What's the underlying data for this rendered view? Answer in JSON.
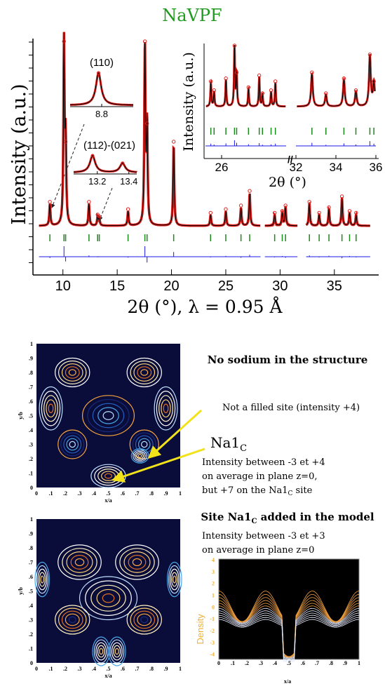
{
  "title": "NaVPF",
  "xrd": {
    "xlabel": "2θ (°), λ = 0.95 Å",
    "ylabel": "Intensity (a.u.)",
    "xlim": [
      7.5,
      38.5
    ],
    "xticks": [
      10,
      15,
      20,
      25,
      30,
      35
    ],
    "peaks": [
      [
        8.8,
        12
      ],
      [
        10.1,
        100
      ],
      [
        10.25,
        45
      ],
      [
        12.4,
        12
      ],
      [
        13.2,
        5
      ],
      [
        13.35,
        4
      ],
      [
        16,
        8
      ],
      [
        17.55,
        100
      ],
      [
        17.75,
        55
      ],
      [
        20.2,
        45
      ],
      [
        23.6,
        6
      ],
      [
        25,
        8
      ],
      [
        26.4,
        10
      ],
      [
        27.2,
        18
      ],
      [
        29.5,
        6
      ],
      [
        30.2,
        7
      ],
      [
        30.5,
        10
      ],
      [
        32.7,
        12
      ],
      [
        33.6,
        6
      ],
      [
        34.5,
        9
      ],
      [
        35.7,
        15
      ],
      [
        36.4,
        7
      ],
      [
        37,
        6
      ]
    ]
  },
  "inset110": {
    "label": "(110)",
    "xlim": [
      8.6,
      9.0
    ],
    "xticks": [
      8.8
    ],
    "peaks": [
      [
        8.78,
        100
      ]
    ]
  },
  "inset112": {
    "label": "(112)-(021)",
    "xlim": [
      13.05,
      13.45
    ],
    "xticks": [
      13.2,
      13.4
    ],
    "peaks": [
      [
        13.17,
        100
      ],
      [
        13.36,
        55
      ]
    ]
  },
  "inset_hr": {
    "xlabel": "2θ (°)",
    "ylabel": "Intensity (a.u.)",
    "segments": [
      [
        24.5,
        32
      ],
      [
        32,
        36
      ]
    ],
    "xticks": [
      26,
      32,
      34,
      36
    ],
    "peaks": [
      [
        25,
        40
      ],
      [
        25.3,
        25
      ],
      [
        26.4,
        45
      ],
      [
        27.2,
        100
      ],
      [
        27.4,
        55
      ],
      [
        28.5,
        30
      ],
      [
        29.5,
        50
      ],
      [
        29.8,
        20
      ],
      [
        30.6,
        25
      ],
      [
        31,
        40
      ],
      [
        32.8,
        55
      ],
      [
        33.5,
        20
      ],
      [
        34.4,
        45
      ],
      [
        35,
        25
      ],
      [
        35.7,
        85
      ],
      [
        35.9,
        40
      ]
    ]
  },
  "map1": {
    "heading": "No sodium in the structure",
    "note": "Not a filled site (intensity +4)",
    "site": "Na1",
    "site_sub": "C",
    "lines": [
      "Intensity between -3 et +4",
      "on average in plane z=0,"
    ],
    "line3": "but +7 on the Na1",
    "line3_sub": "C",
    "line3_end": " site",
    "xticks": [
      "0",
      ".1",
      ".2",
      ".3",
      ".4",
      ".5",
      ".6",
      ".7",
      ".8",
      ".9",
      "1"
    ],
    "yticks": [
      "1",
      ".9",
      ".8",
      ".7",
      ".6",
      ".5",
      ".4",
      ".3",
      ".2",
      ".1",
      "0"
    ],
    "xlabel": "x/a",
    "ylabel": "y/b"
  },
  "map2": {
    "heading": "Site Na1",
    "heading_sub": "C",
    "heading_end": " added in the model",
    "lines": [
      "Intensity between -3 et +3",
      "on average in plane z=0"
    ],
    "xticks": [
      "0",
      ".1",
      ".2",
      ".3",
      ".4",
      ".5",
      ".6",
      ".7",
      ".8",
      ".9",
      "1"
    ],
    "yticks": [
      "1",
      ".9",
      ".8",
      ".7",
      ".6",
      ".5",
      ".4",
      ".3",
      ".2",
      ".1",
      "0"
    ],
    "xlabel": "x/a",
    "ylabel": "y/b"
  },
  "plot3d": {
    "ylabel": "Density",
    "yticks": [
      "4",
      "3",
      "2",
      "1",
      "0",
      "-1",
      "-2",
      "-3",
      "-4"
    ],
    "xticks": [
      "0",
      ".1",
      ".2",
      ".3",
      ".4",
      ".5",
      ".6",
      ".7",
      ".8",
      ".9",
      "1"
    ],
    "xlabel": "x/a"
  }
}
